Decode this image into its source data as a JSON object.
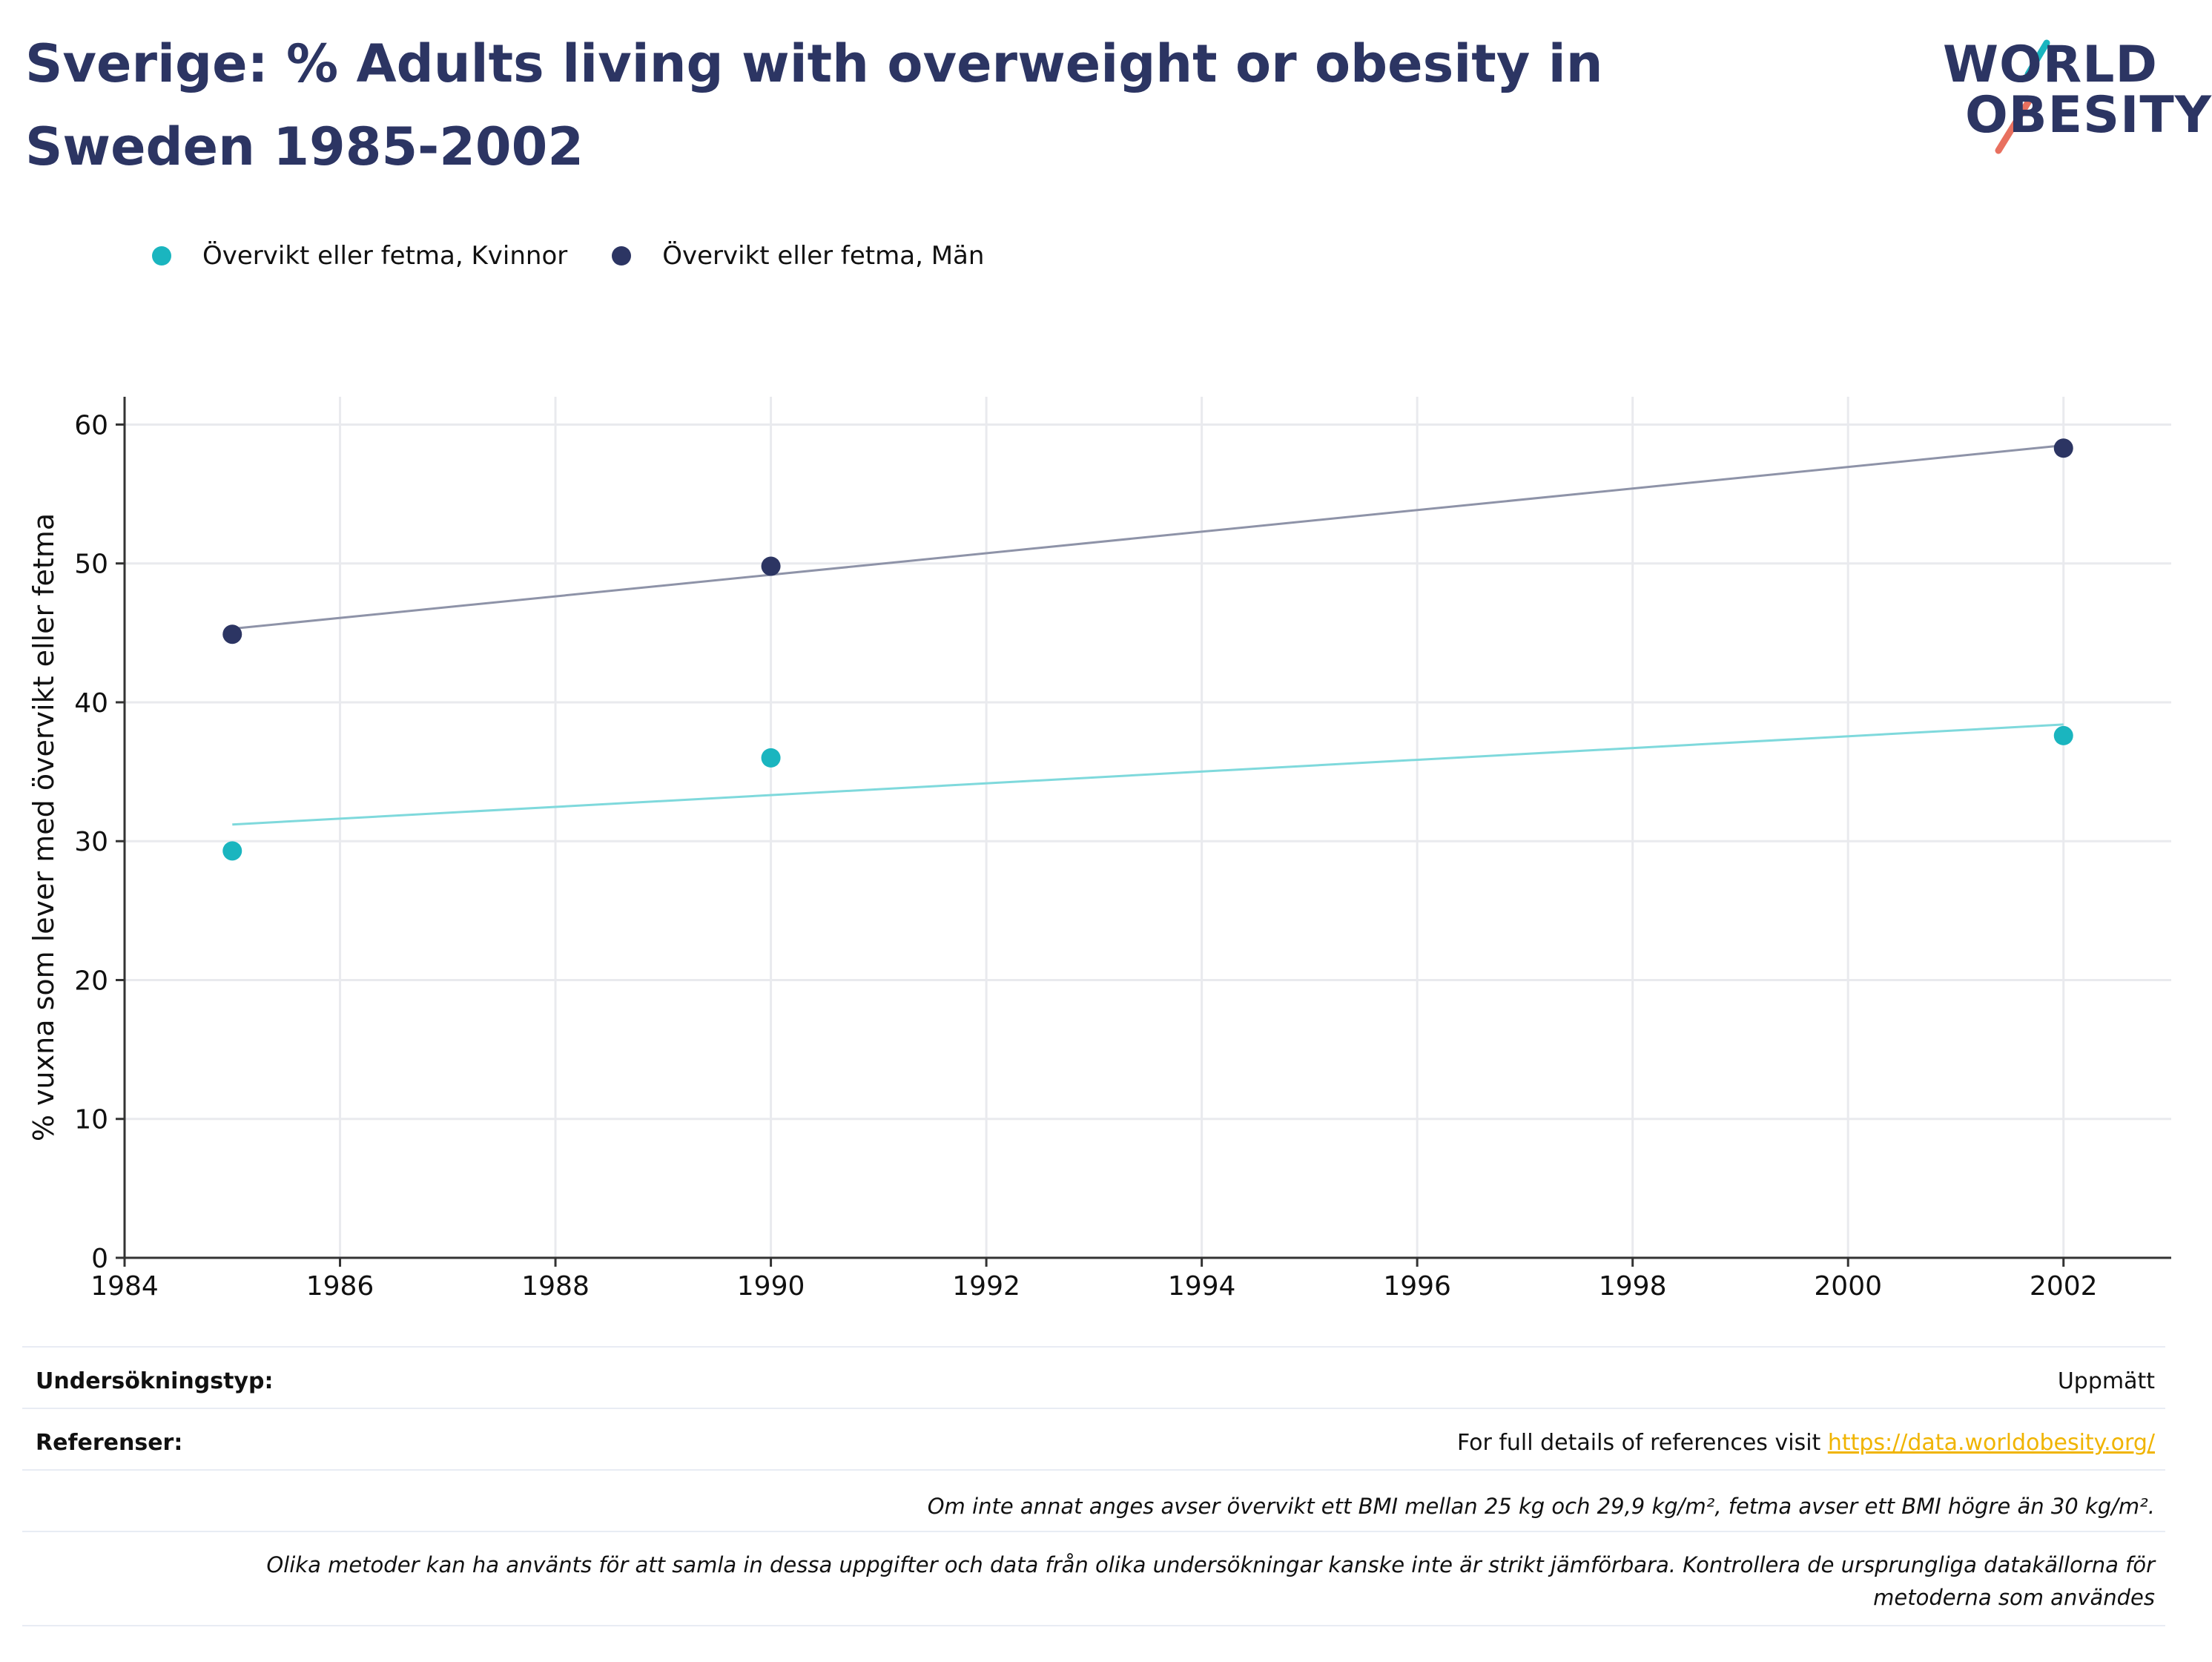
{
  "title": "Sverige: % Adults living with overweight or obesity in Sweden 1985-2002",
  "logo": {
    "line1": "WORLD",
    "line2": "OBESITY"
  },
  "colors": {
    "women": "#1ab5bf",
    "men": "#2c3563",
    "women_trend": "#7fd9dc",
    "men_trend": "#8e93a8",
    "grid": "#e9eaee",
    "link": "#f0b400",
    "title": "#2c3563"
  },
  "legend": [
    {
      "label": "Övervikt eller fetma, Kvinnor",
      "color": "#1ab5bf"
    },
    {
      "label": "Övervikt eller fetma, Män",
      "color": "#2c3563"
    }
  ],
  "chart_data": {
    "type": "scatter",
    "ylabel": "% vuxna som lever med övervikt eller fetma",
    "xlabel": "",
    "xlim": [
      1984,
      2003
    ],
    "ylim": [
      0,
      62
    ],
    "x_ticks": [
      1984,
      1986,
      1988,
      1990,
      1992,
      1994,
      1996,
      1998,
      2000,
      2002
    ],
    "y_ticks": [
      0,
      10,
      20,
      30,
      40,
      50,
      60
    ],
    "grid": true,
    "legend_position": "top-left",
    "trendlines": true,
    "series": [
      {
        "name": "Övervikt eller fetma, Kvinnor",
        "color": "#1ab5bf",
        "points": [
          {
            "x": 1985,
            "y": 29.3
          },
          {
            "x": 1990,
            "y": 36.0
          },
          {
            "x": 2002,
            "y": 37.6
          }
        ],
        "trend": [
          {
            "x": 1985,
            "y": 31.2
          },
          {
            "x": 2002,
            "y": 38.4
          }
        ]
      },
      {
        "name": "Övervikt eller fetma, Män",
        "color": "#2c3563",
        "points": [
          {
            "x": 1985,
            "y": 44.9
          },
          {
            "x": 1990,
            "y": 49.8
          },
          {
            "x": 2002,
            "y": 58.3
          }
        ],
        "trend": [
          {
            "x": 1985,
            "y": 45.3
          },
          {
            "x": 2002,
            "y": 58.5
          }
        ]
      }
    ]
  },
  "footer": {
    "survey_type_label": "Undersökningstyp:",
    "survey_type_value": "Uppmätt",
    "references_label": "Referenser:",
    "references_text": "For full details of references visit ",
    "references_link": "https://data.worldobesity.org/",
    "note1": "Om inte annat anges avser övervikt ett BMI mellan 25 kg och 29,9 kg/m², fetma avser ett BMI högre än 30 kg/m².",
    "note2_line1": "Olika metoder kan ha använts för att samla in dessa uppgifter och data från olika undersökningar kanske inte är strikt jämförbara. Kontrollera de ursprungliga datakällorna för",
    "note2_line2": "metoderna som användes"
  }
}
